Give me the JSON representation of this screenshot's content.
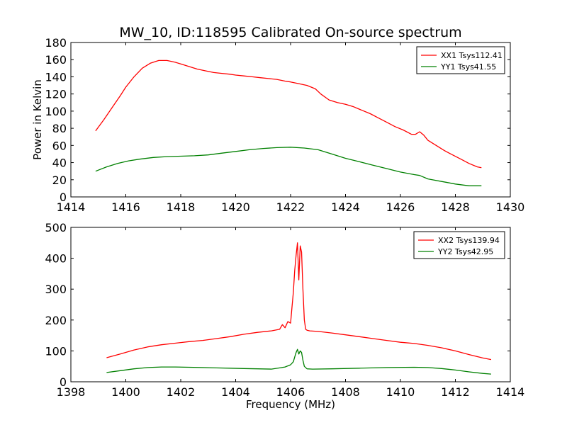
{
  "figure": {
    "title": "MW_10, ID:118595 Calibrated On-source spectrum"
  },
  "chart_data": [
    {
      "type": "line",
      "title": "MW_10, ID:118595 Calibrated On-source spectrum",
      "xlabel": "",
      "ylabel": "Power in Kelvin",
      "xlim": [
        1414,
        1430
      ],
      "ylim": [
        0,
        180
      ],
      "xticks": [
        "1414",
        "1416",
        "1418",
        "1420",
        "1422",
        "1424",
        "1426",
        "1428",
        "1430"
      ],
      "yticks": [
        "0",
        "20",
        "40",
        "60",
        "80",
        "100",
        "120",
        "140",
        "160",
        "180"
      ],
      "grid": false,
      "legend_position": "top-right",
      "series": [
        {
          "name": "XX1 Tsys112.41",
          "color": "#ff0000",
          "x": [
            1414.9,
            1415.2,
            1415.5,
            1415.8,
            1416.0,
            1416.3,
            1416.6,
            1416.9,
            1417.2,
            1417.5,
            1417.8,
            1418.0,
            1418.3,
            1418.6,
            1418.9,
            1419.2,
            1419.5,
            1419.8,
            1420.0,
            1420.3,
            1420.6,
            1420.9,
            1421.2,
            1421.5,
            1421.8,
            1422.0,
            1422.3,
            1422.6,
            1422.9,
            1423.1,
            1423.4,
            1423.7,
            1424.0,
            1424.3,
            1424.6,
            1424.9,
            1425.2,
            1425.5,
            1425.8,
            1426.1,
            1426.4,
            1426.55,
            1426.7,
            1426.85,
            1427.0,
            1427.3,
            1427.6,
            1427.9,
            1428.2,
            1428.5,
            1428.8,
            1428.95
          ],
          "y": [
            77,
            90,
            104,
            118,
            128,
            140,
            150,
            156,
            159,
            159,
            157,
            155,
            152,
            149,
            147,
            145,
            144,
            143,
            142,
            141,
            140,
            139,
            138,
            137,
            135,
            134,
            132,
            130,
            126,
            120,
            113,
            110,
            108,
            105,
            101,
            97,
            92,
            87,
            82,
            78,
            73,
            73,
            76,
            72,
            66,
            60,
            54,
            49,
            44,
            39,
            35,
            34
          ]
        },
        {
          "name": "YY1 Tsys41.55",
          "color": "#008000",
          "x": [
            1414.9,
            1415.3,
            1415.7,
            1416.1,
            1416.5,
            1417.0,
            1417.5,
            1418.0,
            1418.5,
            1419.0,
            1419.5,
            1420.0,
            1420.5,
            1421.0,
            1421.5,
            1422.0,
            1422.5,
            1423.0,
            1423.5,
            1424.0,
            1424.5,
            1425.0,
            1425.5,
            1426.0,
            1426.5,
            1426.7,
            1427.0,
            1427.5,
            1428.0,
            1428.5,
            1428.95
          ],
          "y": [
            30,
            35,
            39,
            42,
            44,
            46,
            47,
            47.5,
            48,
            49,
            51,
            53,
            55,
            56.5,
            57.5,
            58,
            57,
            55,
            50,
            45,
            41,
            37,
            33,
            29,
            26,
            25,
            21,
            18,
            15,
            13,
            13
          ]
        }
      ]
    },
    {
      "type": "line",
      "title": "",
      "xlabel": "Frequency (MHz)",
      "ylabel": "",
      "xlim": [
        1398,
        1414
      ],
      "ylim": [
        0,
        500
      ],
      "xticks": [
        "1398",
        "1400",
        "1402",
        "1404",
        "1406",
        "1408",
        "1410",
        "1412",
        "1414"
      ],
      "yticks": [
        "0",
        "100",
        "200",
        "300",
        "400",
        "500"
      ],
      "grid": false,
      "legend_position": "top-right",
      "series": [
        {
          "name": "XX2 Tsys139.94",
          "color": "#ff0000",
          "x": [
            1399.3,
            1399.8,
            1400.3,
            1400.8,
            1401.3,
            1401.8,
            1402.3,
            1402.8,
            1403.3,
            1403.8,
            1404.3,
            1404.8,
            1405.3,
            1405.6,
            1405.7,
            1405.8,
            1405.9,
            1406.0,
            1406.05,
            1406.1,
            1406.15,
            1406.2,
            1406.25,
            1406.3,
            1406.35,
            1406.4,
            1406.45,
            1406.5,
            1406.55,
            1406.6,
            1406.7,
            1407.0,
            1407.5,
            1408.0,
            1408.5,
            1409.0,
            1409.5,
            1410.0,
            1410.5,
            1411.0,
            1411.5,
            1412.0,
            1412.5,
            1413.0,
            1413.3
          ],
          "y": [
            78,
            90,
            103,
            113,
            120,
            125,
            130,
            134,
            140,
            146,
            154,
            160,
            165,
            170,
            185,
            175,
            195,
            190,
            240,
            290,
            360,
            410,
            450,
            330,
            440,
            420,
            300,
            200,
            170,
            167,
            165,
            163,
            158,
            152,
            146,
            140,
            134,
            128,
            124,
            118,
            110,
            100,
            88,
            77,
            72
          ]
        },
        {
          "name": "YY2 Tsys42.95",
          "color": "#008000",
          "x": [
            1399.3,
            1399.8,
            1400.3,
            1400.8,
            1401.3,
            1401.8,
            1402.3,
            1402.8,
            1403.3,
            1403.8,
            1404.3,
            1404.8,
            1405.3,
            1405.6,
            1405.8,
            1406.0,
            1406.1,
            1406.15,
            1406.2,
            1406.25,
            1406.3,
            1406.35,
            1406.4,
            1406.45,
            1406.5,
            1406.6,
            1406.8,
            1407.5,
            1408.5,
            1409.5,
            1410.5,
            1411.0,
            1411.5,
            1412.0,
            1412.5,
            1413.0,
            1413.3
          ],
          "y": [
            30,
            36,
            42,
            46,
            48,
            48,
            47,
            46,
            45,
            44,
            43,
            42,
            41,
            45,
            48,
            55,
            65,
            80,
            95,
            105,
            90,
            100,
            95,
            70,
            50,
            42,
            41,
            42,
            44,
            46,
            47,
            46,
            43,
            38,
            32,
            27,
            25
          ]
        }
      ]
    }
  ]
}
